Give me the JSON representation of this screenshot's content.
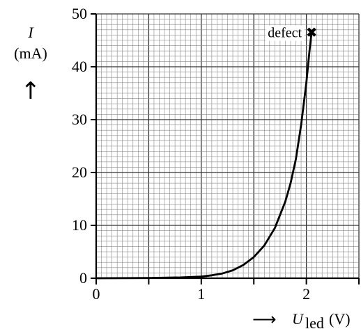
{
  "chart_data": {
    "type": "line",
    "title": "",
    "ylabel_symbol": "I",
    "ylabel_unit": "(mA)",
    "ylabel_arrow": "↑",
    "xlabel_arrow": "⟶",
    "xlabel_symbol": "U",
    "xlabel_subscript": "led",
    "xlabel_unit": "(V)",
    "xlim": [
      0,
      2.5
    ],
    "ylim": [
      0,
      50
    ],
    "x_ticks": [
      0,
      1,
      2
    ],
    "x_tick_labels": [
      "0",
      "1",
      "2"
    ],
    "y_ticks": [
      0,
      10,
      20,
      30,
      40,
      50
    ],
    "y_tick_labels": [
      "0",
      "10",
      "20",
      "30",
      "40",
      "50"
    ],
    "grid": {
      "minor_x": 0.05,
      "minor_y": 1,
      "major_x": 0.5,
      "major_y": 10
    },
    "series": [
      {
        "x": [
          0,
          0.5,
          0.8,
          1.0,
          1.1,
          1.2,
          1.3,
          1.4,
          1.5,
          1.6,
          1.7,
          1.8,
          1.85,
          1.9,
          1.95,
          2.0,
          2.03,
          2.05
        ],
        "y": [
          0,
          0.05,
          0.15,
          0.3,
          0.55,
          0.9,
          1.5,
          2.5,
          4.0,
          6.2,
          9.5,
          14.5,
          18.0,
          22.5,
          29.0,
          37.0,
          43.0,
          46.5
        ]
      }
    ],
    "annotation": {
      "text": "defect",
      "marker": "✖",
      "x": 2.05,
      "y": 46.5
    }
  }
}
